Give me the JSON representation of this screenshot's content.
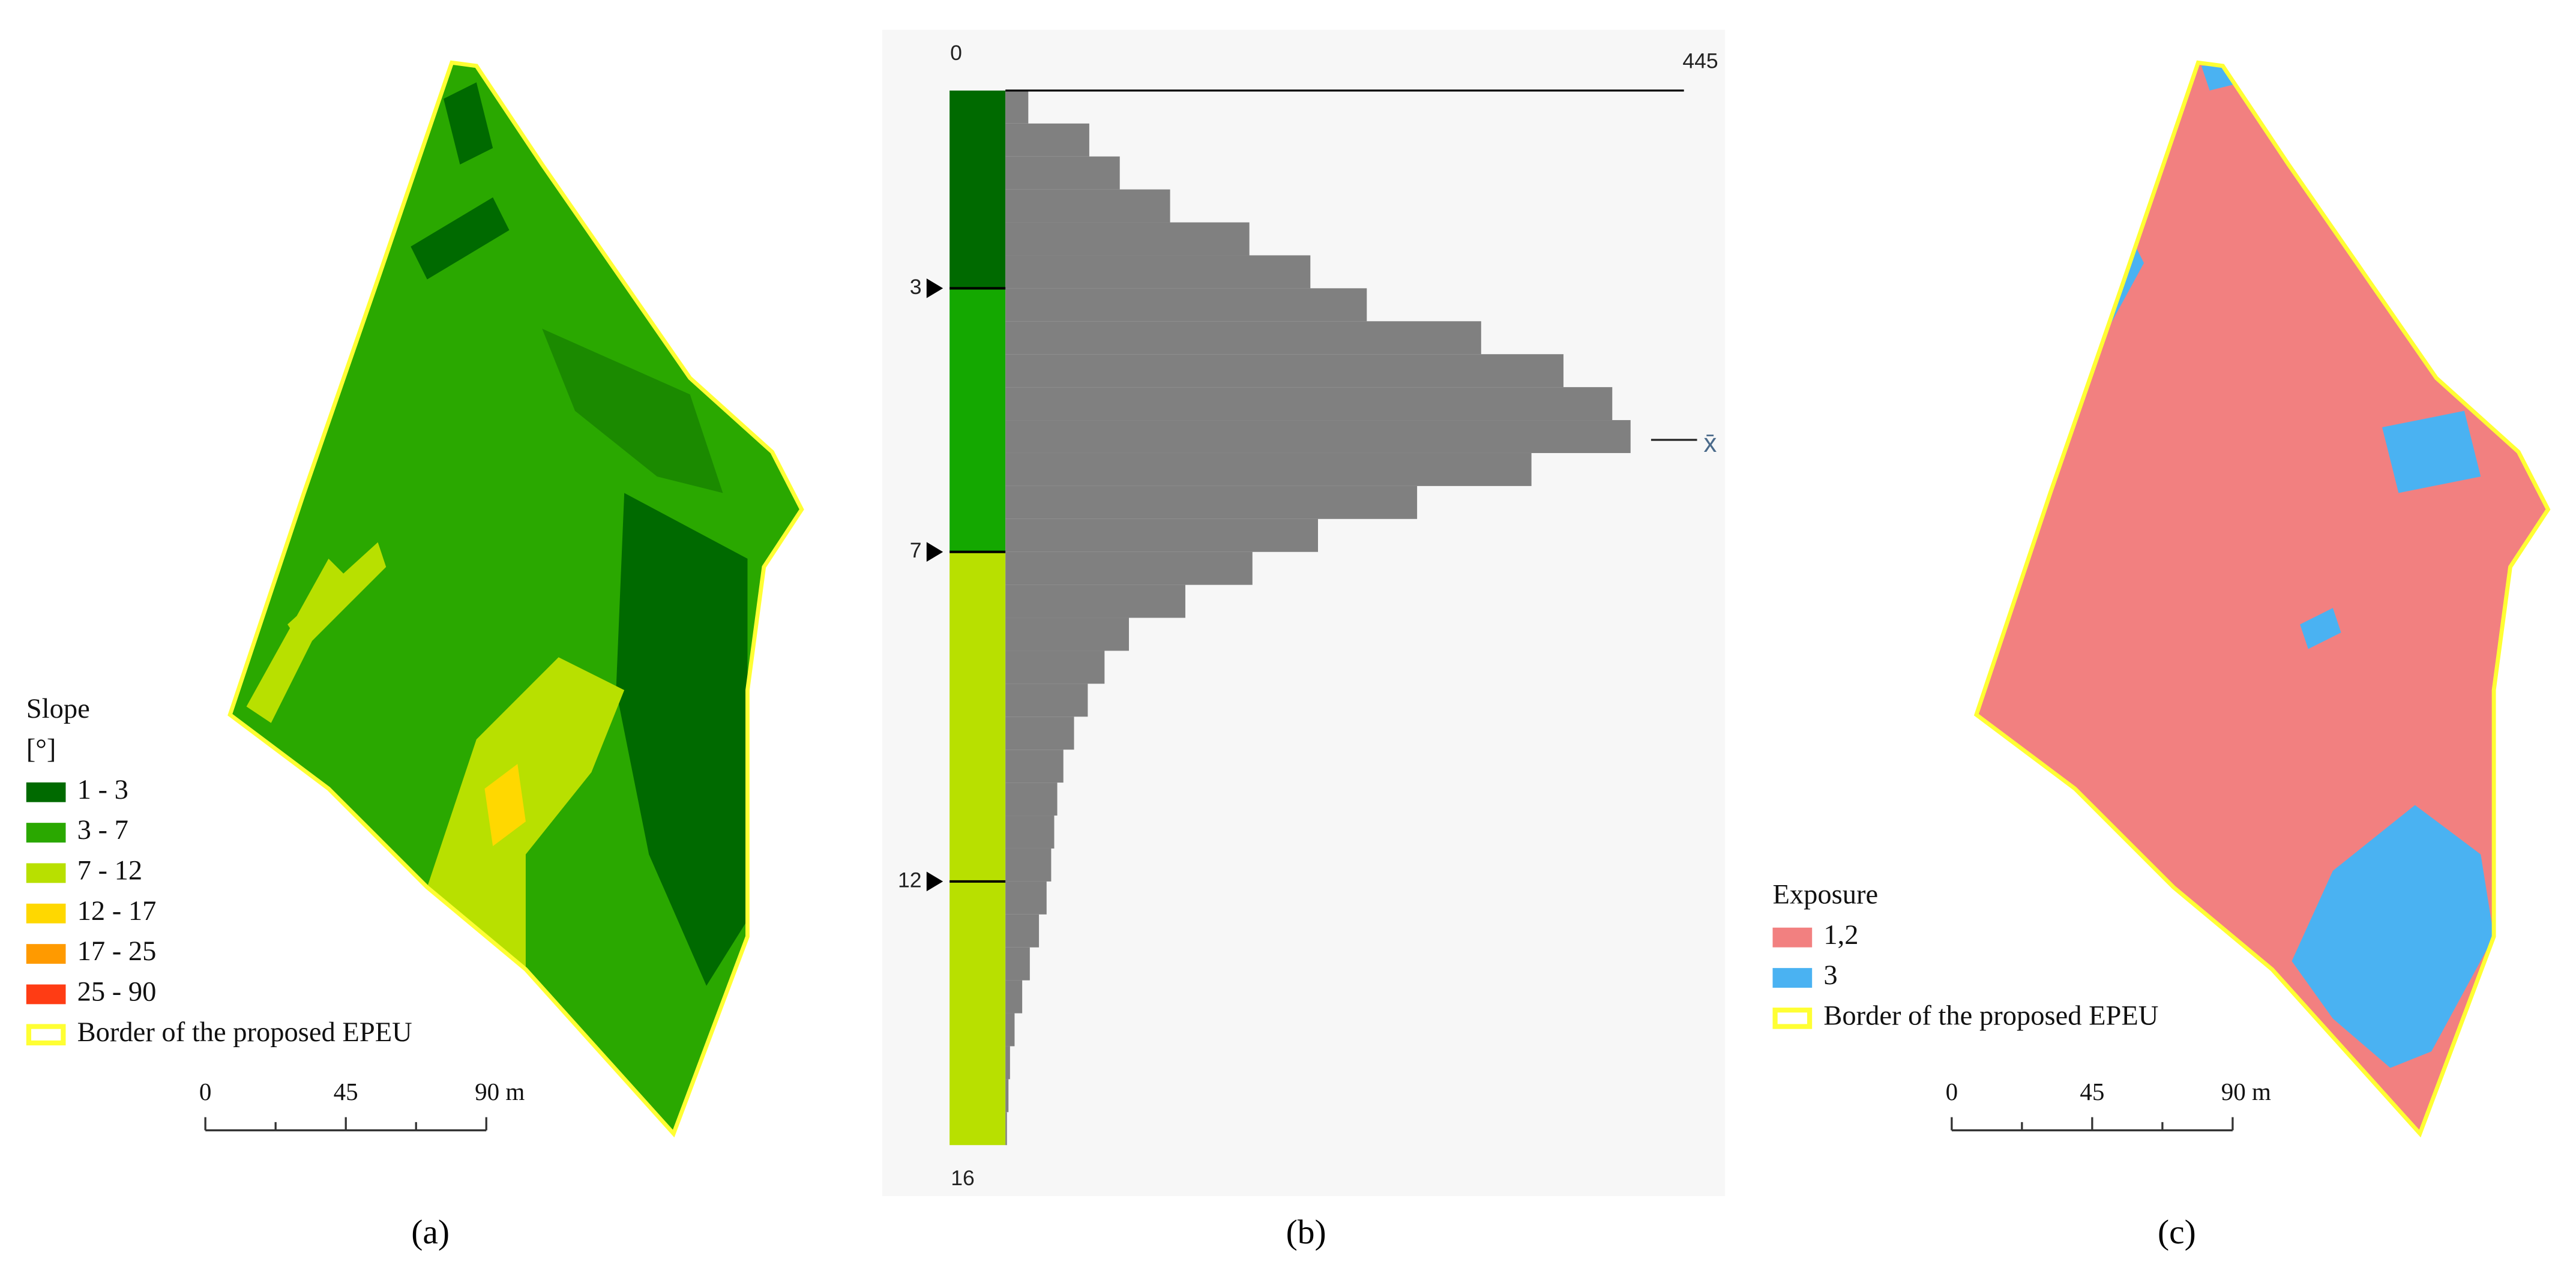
{
  "chart_data": {
    "type": "histogram",
    "orientation": "horizontal",
    "bins": [
      0,
      0.5,
      1,
      1.5,
      2,
      2.5,
      3,
      3.5,
      4,
      4.5,
      5,
      5.5,
      6,
      6.5,
      7,
      7.5,
      8,
      8.5,
      9,
      9.5,
      10,
      10.5,
      11,
      11.5,
      12,
      12.5,
      13,
      13.5,
      14,
      14.5,
      15,
      15.5,
      16
    ],
    "values": [
      15,
      55,
      75,
      108,
      160,
      200,
      237,
      312,
      366,
      398,
      410,
      345,
      270,
      205,
      162,
      118,
      81,
      65,
      54,
      45,
      38,
      34,
      32,
      30,
      27,
      22,
      16,
      11,
      6,
      3,
      2,
      1
    ],
    "color": "#808080",
    "background": "#f7f7f7",
    "ylim": [
      0,
      16
    ],
    "yticks": [
      0,
      3,
      7,
      12,
      16
    ],
    "xlim": [
      0,
      445
    ],
    "xticks": [
      445
    ],
    "classes": [
      {
        "range": [
          0,
          3
        ],
        "color": "#006a00"
      },
      {
        "range": [
          3,
          7
        ],
        "color": "#14a800"
      },
      {
        "range": [
          7,
          16
        ],
        "color": "#b8e000"
      }
    ],
    "mean": 5.3,
    "mean_label": "x̄"
  },
  "maps": [
    {
      "legend_title": "Slope",
      "legend_unit": "[°]",
      "legend": [
        {
          "label": "1 - 3",
          "color": "#006a00"
        },
        {
          "label": "3 - 7",
          "color": "#2aa800"
        },
        {
          "label": "7 - 12",
          "color": "#b8e000"
        },
        {
          "label": "12 - 17",
          "color": "#ffd800"
        },
        {
          "label": "17 - 25",
          "color": "#ff9a00"
        },
        {
          "label": "25 - 90",
          "color": "#ff3c14"
        },
        {
          "label": "Border of the proposed EPEU",
          "color": "#ffff33"
        }
      ],
      "scale_labels": [
        "0",
        "45",
        "90 m"
      ]
    },
    {
      "legend_title": "Exposure",
      "legend": [
        {
          "label": "1,2",
          "color": "#f28080"
        },
        {
          "label": "3",
          "color": "#4ab2f2"
        },
        {
          "label": "Border of the proposed EPEU",
          "color": "#ffff33"
        }
      ],
      "scale_labels": [
        "0",
        "45",
        "90 m"
      ]
    }
  ],
  "panel_labels": [
    "(a)",
    "(b)",
    "(c)"
  ]
}
